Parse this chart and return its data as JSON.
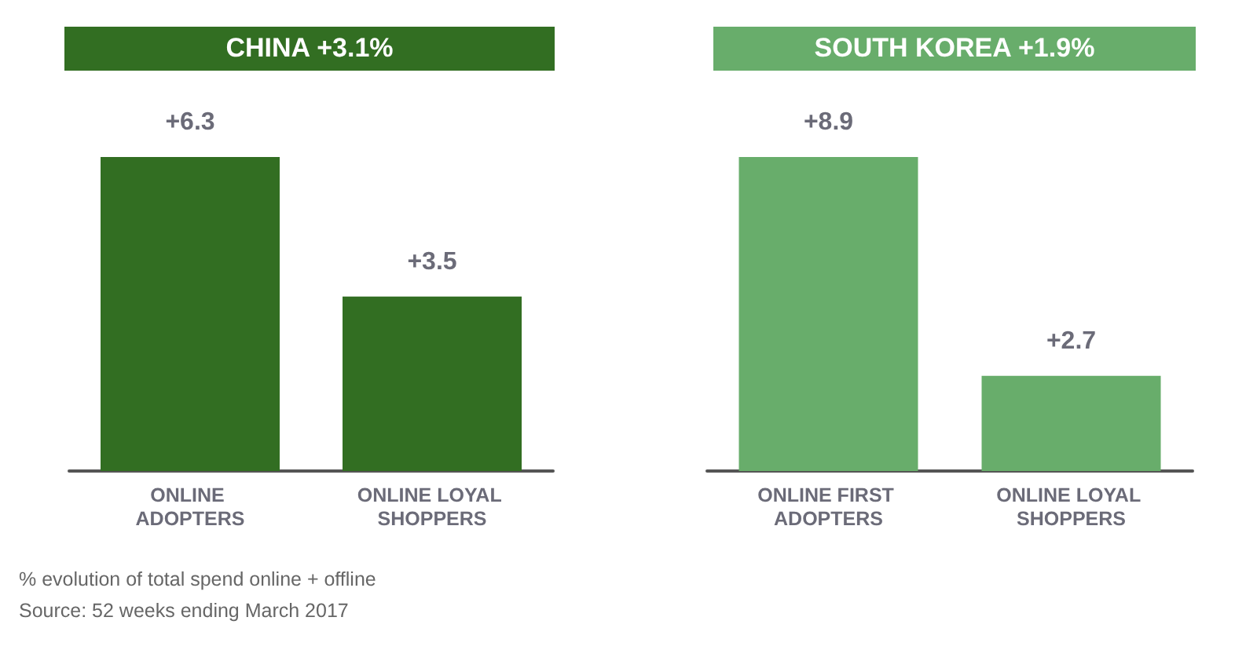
{
  "chart_data": [
    {
      "type": "bar",
      "title": "CHINA +3.1%",
      "categories": [
        "ONLINE ADOPTERS",
        "ONLINE LOYAL SHOPPERS"
      ],
      "values": [
        6.3,
        3.5
      ],
      "color": "#326e22",
      "value_labels": [
        "+6.3",
        "+3.5"
      ],
      "annotations": [
        "% evolution of total spend online + offline",
        "Source: 52 weeks ending March 2017"
      ]
    },
    {
      "type": "bar",
      "title": "SOUTH KOREA +1.9%",
      "categories": [
        "ONLINE FIRST ADOPTERS",
        "ONLINE LOYAL SHOPPERS"
      ],
      "values": [
        8.9,
        2.7
      ],
      "color": "#68ad6b",
      "value_labels": [
        "+8.9",
        "+2.7"
      ]
    }
  ]
}
